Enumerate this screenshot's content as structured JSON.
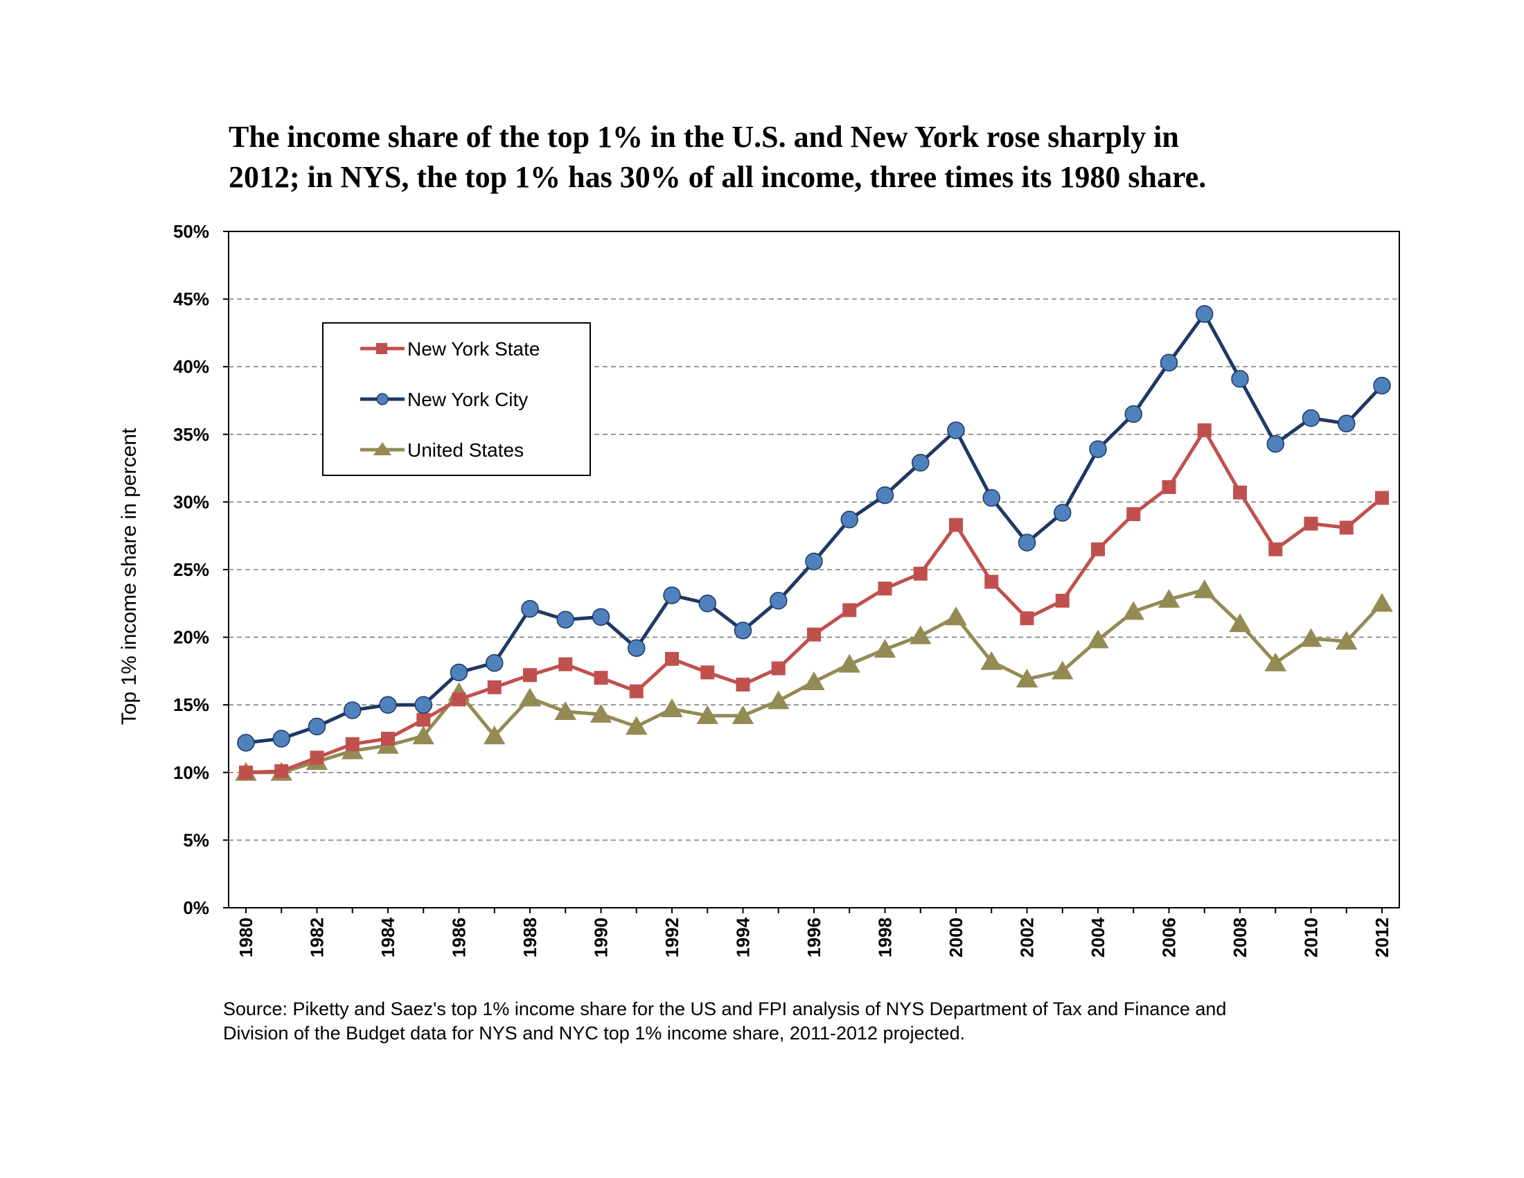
{
  "title_lines": [
    "The income share of the top 1% in the U.S. and New York rose sharply in",
    "2012; in NYS, the top 1% has 30% of all income, three times its 1980 share."
  ],
  "source_lines": [
    "Source: Piketty and Saez's top 1% income share for the US and FPI analysis of NYS Department of Tax and Finance and",
    "Division of the Budget data for NYS and NYC top 1% income share, 2011-2012 projected."
  ],
  "chart_data": {
    "type": "line",
    "title": "The income share of the top 1% in the U.S. and New York rose sharply in 2012; in NYS, the top 1% has 30% of all income, three times its 1980 share.",
    "xlabel": "",
    "ylabel": "Top 1% income share in percent",
    "x": [
      1980,
      1981,
      1982,
      1983,
      1984,
      1985,
      1986,
      1987,
      1988,
      1989,
      1990,
      1991,
      1992,
      1993,
      1994,
      1995,
      1996,
      1997,
      1998,
      1999,
      2000,
      2001,
      2002,
      2003,
      2004,
      2005,
      2006,
      2007,
      2008,
      2009,
      2010,
      2011,
      2012
    ],
    "x_tick_labels": [
      "1980",
      "1982",
      "1984",
      "1986",
      "1988",
      "1990",
      "1992",
      "1994",
      "1996",
      "1998",
      "2000",
      "2002",
      "2004",
      "2006",
      "2008",
      "2010",
      "2012"
    ],
    "ylim": [
      0,
      50
    ],
    "y_ticks": [
      0,
      5,
      10,
      15,
      20,
      25,
      30,
      35,
      40,
      45,
      50
    ],
    "y_tick_labels": [
      "0%",
      "5%",
      "10%",
      "15%",
      "20%",
      "25%",
      "30%",
      "35%",
      "40%",
      "45%",
      "50%"
    ],
    "grid": "horizontal-dashed",
    "legend_position": "top-left",
    "series": [
      {
        "name": "New York State",
        "color": "#c0504d",
        "marker": "square",
        "values": [
          10.0,
          10.1,
          11.1,
          12.1,
          12.5,
          13.9,
          15.4,
          16.3,
          17.2,
          18.0,
          17.0,
          16.0,
          18.4,
          17.4,
          16.5,
          17.7,
          20.2,
          22.0,
          23.6,
          24.7,
          28.3,
          24.1,
          21.4,
          22.7,
          26.5,
          29.1,
          31.1,
          35.3,
          30.7,
          26.5,
          28.4,
          28.1,
          30.3
        ]
      },
      {
        "name": "New York City",
        "color": "#1f3864",
        "marker_color": "#4f81bd",
        "marker": "circle",
        "values": [
          12.2,
          12.5,
          13.4,
          14.6,
          15.0,
          15.0,
          17.4,
          18.1,
          22.1,
          21.3,
          21.5,
          19.2,
          23.1,
          22.5,
          20.5,
          22.7,
          25.6,
          28.7,
          30.5,
          32.9,
          35.3,
          30.3,
          27.0,
          29.2,
          33.9,
          36.5,
          40.3,
          43.9,
          39.1,
          34.3,
          36.2,
          35.8,
          38.6
        ]
      },
      {
        "name": "United States",
        "color": "#948a54",
        "marker": "triangle",
        "values": [
          10.0,
          10.0,
          10.8,
          11.6,
          12.0,
          12.7,
          15.9,
          12.7,
          15.5,
          14.5,
          14.3,
          13.4,
          14.7,
          14.2,
          14.2,
          15.3,
          16.7,
          18.0,
          19.1,
          20.1,
          21.5,
          18.2,
          16.9,
          17.5,
          19.8,
          21.9,
          22.8,
          23.5,
          21.0,
          18.1,
          19.9,
          19.7,
          22.5
        ]
      }
    ]
  }
}
